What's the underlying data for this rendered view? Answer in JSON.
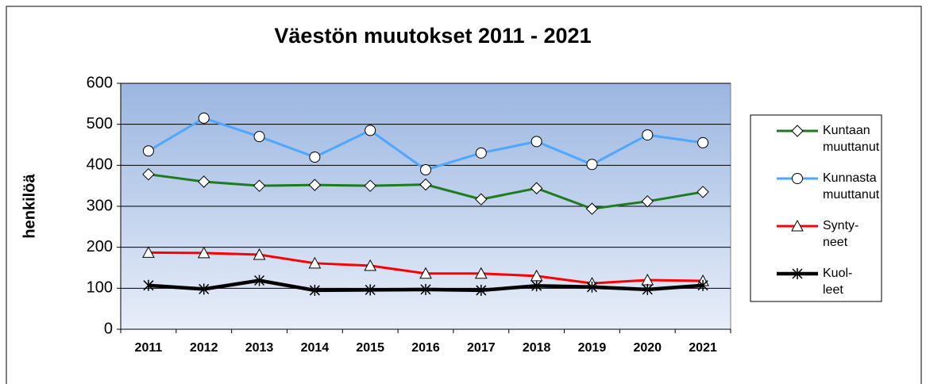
{
  "chart_data": {
    "type": "line",
    "title": "Väestön muutokset 2011 - 2021",
    "y_label": "henkilöä",
    "categories": [
      "2011",
      "2012",
      "2013",
      "2014",
      "2015",
      "2016",
      "2017",
      "2018",
      "2019",
      "2020",
      "2021"
    ],
    "series": [
      {
        "name": "Kuntaan\nmuuttanut",
        "color": "#1e7b1e",
        "marker": "diamond",
        "values": [
          378,
          360,
          350,
          352,
          350,
          353,
          317,
          344,
          294,
          312,
          335
        ]
      },
      {
        "name": "Kunnasta\nmuuttanut",
        "color": "#4da6ff",
        "marker": "circle",
        "values": [
          435,
          515,
          470,
          420,
          485,
          389,
          430,
          458,
          402,
          474,
          455
        ]
      },
      {
        "name": "Synty-\nneet",
        "color": "#ff0000",
        "marker": "triangle",
        "values": [
          187,
          186,
          182,
          161,
          155,
          136,
          136,
          130,
          112,
          120,
          118
        ]
      },
      {
        "name": "Kuol-\nleet",
        "color": "#000000",
        "marker": "asterisk",
        "values": [
          107,
          98,
          119,
          95,
          96,
          97,
          95,
          106,
          103,
          97,
          107
        ]
      }
    ],
    "ylim": [
      0,
      600
    ],
    "yticks": [
      0,
      100,
      200,
      300,
      400,
      500,
      600
    ],
    "grid": true,
    "legend": "right"
  }
}
